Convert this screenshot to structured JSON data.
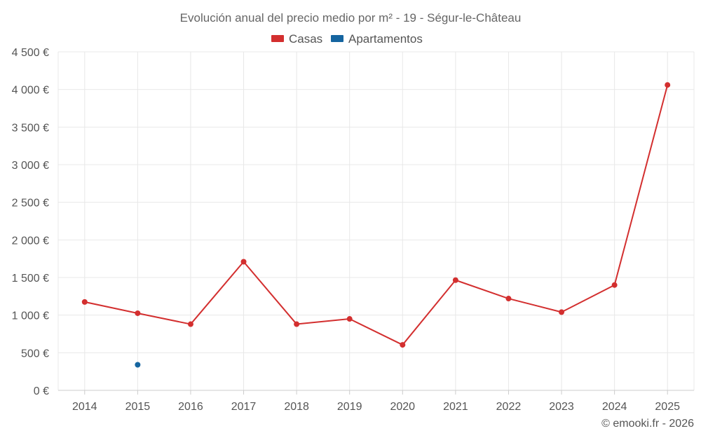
{
  "chart_data": {
    "type": "line",
    "title": "Evolución anual del precio medio por m² - 19 - Ségur-le-Château",
    "xlabel": "",
    "ylabel": "",
    "categories": [
      "2014",
      "2015",
      "2016",
      "2017",
      "2018",
      "2019",
      "2020",
      "2021",
      "2022",
      "2023",
      "2024",
      "2025"
    ],
    "ylim": [
      0,
      4500
    ],
    "yticks": [
      0,
      500,
      1000,
      1500,
      2000,
      2500,
      3000,
      3500,
      4000,
      4500
    ],
    "ytick_labels": [
      "0 €",
      "500 €",
      "1 000 €",
      "1 500 €",
      "2 000 €",
      "2 500 €",
      "3 000 €",
      "3 500 €",
      "4 000 €",
      "4 500 €"
    ],
    "grid": true,
    "legend_position": "top-center",
    "series": [
      {
        "name": "Casas",
        "color": "#d32f2f",
        "values": [
          1175,
          1025,
          880,
          1710,
          880,
          950,
          605,
          1465,
          1220,
          1040,
          1400,
          4060
        ]
      },
      {
        "name": "Apartamentos",
        "color": "#1565a0",
        "values": [
          null,
          340,
          null,
          null,
          null,
          null,
          null,
          null,
          null,
          null,
          null,
          null
        ]
      }
    ]
  },
  "credit": "© emooki.fr - 2026"
}
